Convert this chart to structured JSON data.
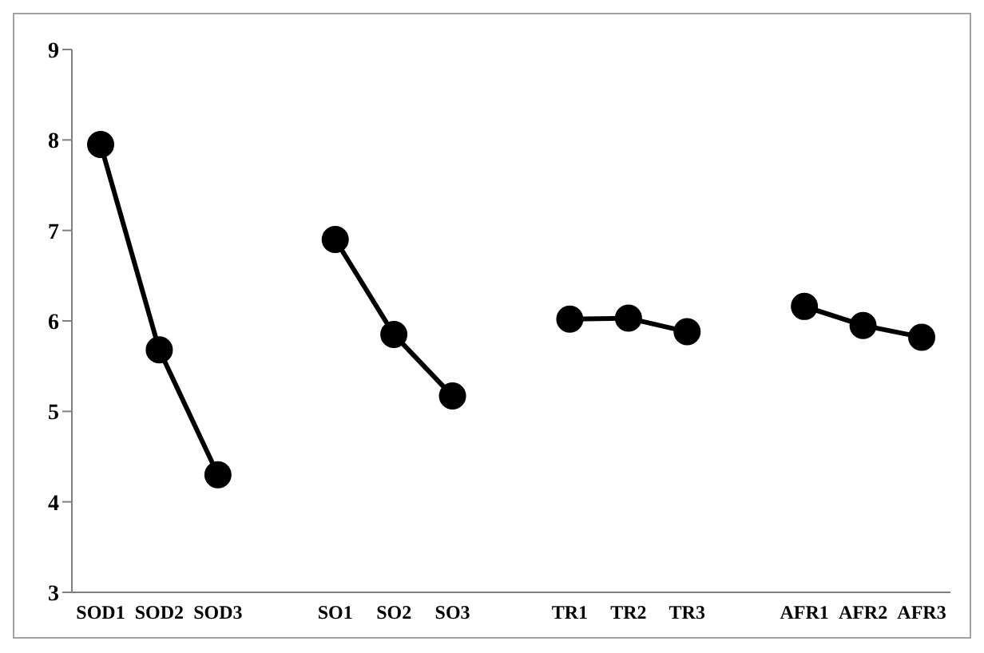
{
  "chart_data": {
    "type": "line",
    "categories": [
      "SOD1",
      "SOD2",
      "SOD3",
      null,
      "SO1",
      "SO2",
      "SO3",
      null,
      "TR1",
      "TR2",
      "TR3",
      null,
      "AFR1",
      "AFR2",
      "AFR3"
    ],
    "series": [
      {
        "color": "#000000",
        "values": [
          7.95,
          5.68,
          4.3,
          null,
          6.9,
          5.85,
          5.17,
          null,
          6.02,
          6.03,
          5.88,
          null,
          6.16,
          5.95,
          5.82
        ]
      }
    ],
    "ylim": [
      3,
      9
    ],
    "yticks": [
      3,
      4,
      5,
      6,
      7,
      8,
      9
    ],
    "marker": "circle",
    "line_style": "solid"
  }
}
